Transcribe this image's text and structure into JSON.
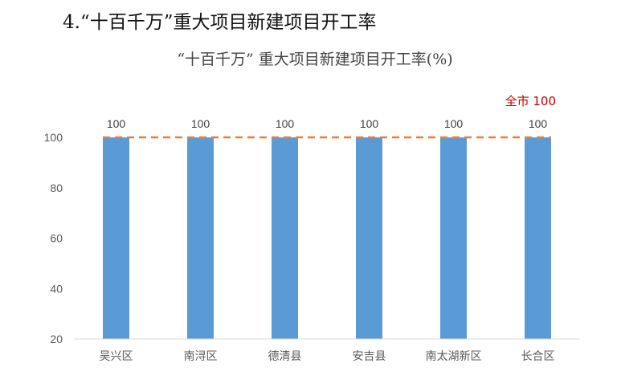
{
  "heading": "4.“十百千万”重大项目新建项目开工率",
  "chart_data": {
    "type": "bar",
    "title": "“十百千万” 重大项目新建项目开工率(%)",
    "categories": [
      "吴兴区",
      "南浔区",
      "德清县",
      "安吉县",
      "南太湖新区",
      "长合区"
    ],
    "values": [
      100,
      100,
      100,
      100,
      100,
      100
    ],
    "data_labels": [
      "100",
      "100",
      "100",
      "100",
      "100",
      "100"
    ],
    "ylim": [
      20,
      100
    ],
    "yticks": [
      20,
      40,
      60,
      80,
      100
    ],
    "grid": false,
    "reference_line": {
      "value": 100,
      "label": "全市 100",
      "style": "dashed",
      "color": "#ED7D31",
      "label_color": "#C00000"
    },
    "bar_color": "#5B9BD5",
    "axis_color": "#D9D9D9"
  }
}
